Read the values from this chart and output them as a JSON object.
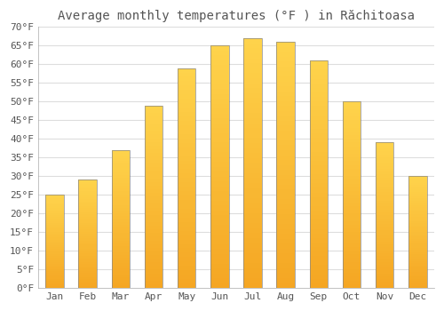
{
  "title": "Average monthly temperatures (°F ) in Răchitoasa",
  "months": [
    "Jan",
    "Feb",
    "Mar",
    "Apr",
    "May",
    "Jun",
    "Jul",
    "Aug",
    "Sep",
    "Oct",
    "Nov",
    "Dec"
  ],
  "values": [
    25,
    29,
    37,
    49,
    59,
    65,
    67,
    66,
    61,
    50,
    39,
    30
  ],
  "bar_color_top": "#FFD44C",
  "bar_color_bottom": "#F5A623",
  "bar_edge_color": "#888888",
  "background_color": "#FFFFFF",
  "plot_bg_color": "#FFFFFF",
  "grid_color": "#DDDDDD",
  "text_color": "#555555",
  "ylim": [
    0,
    70
  ],
  "ytick_step": 5,
  "title_fontsize": 10,
  "tick_fontsize": 8,
  "font_family": "monospace",
  "bar_width": 0.55
}
